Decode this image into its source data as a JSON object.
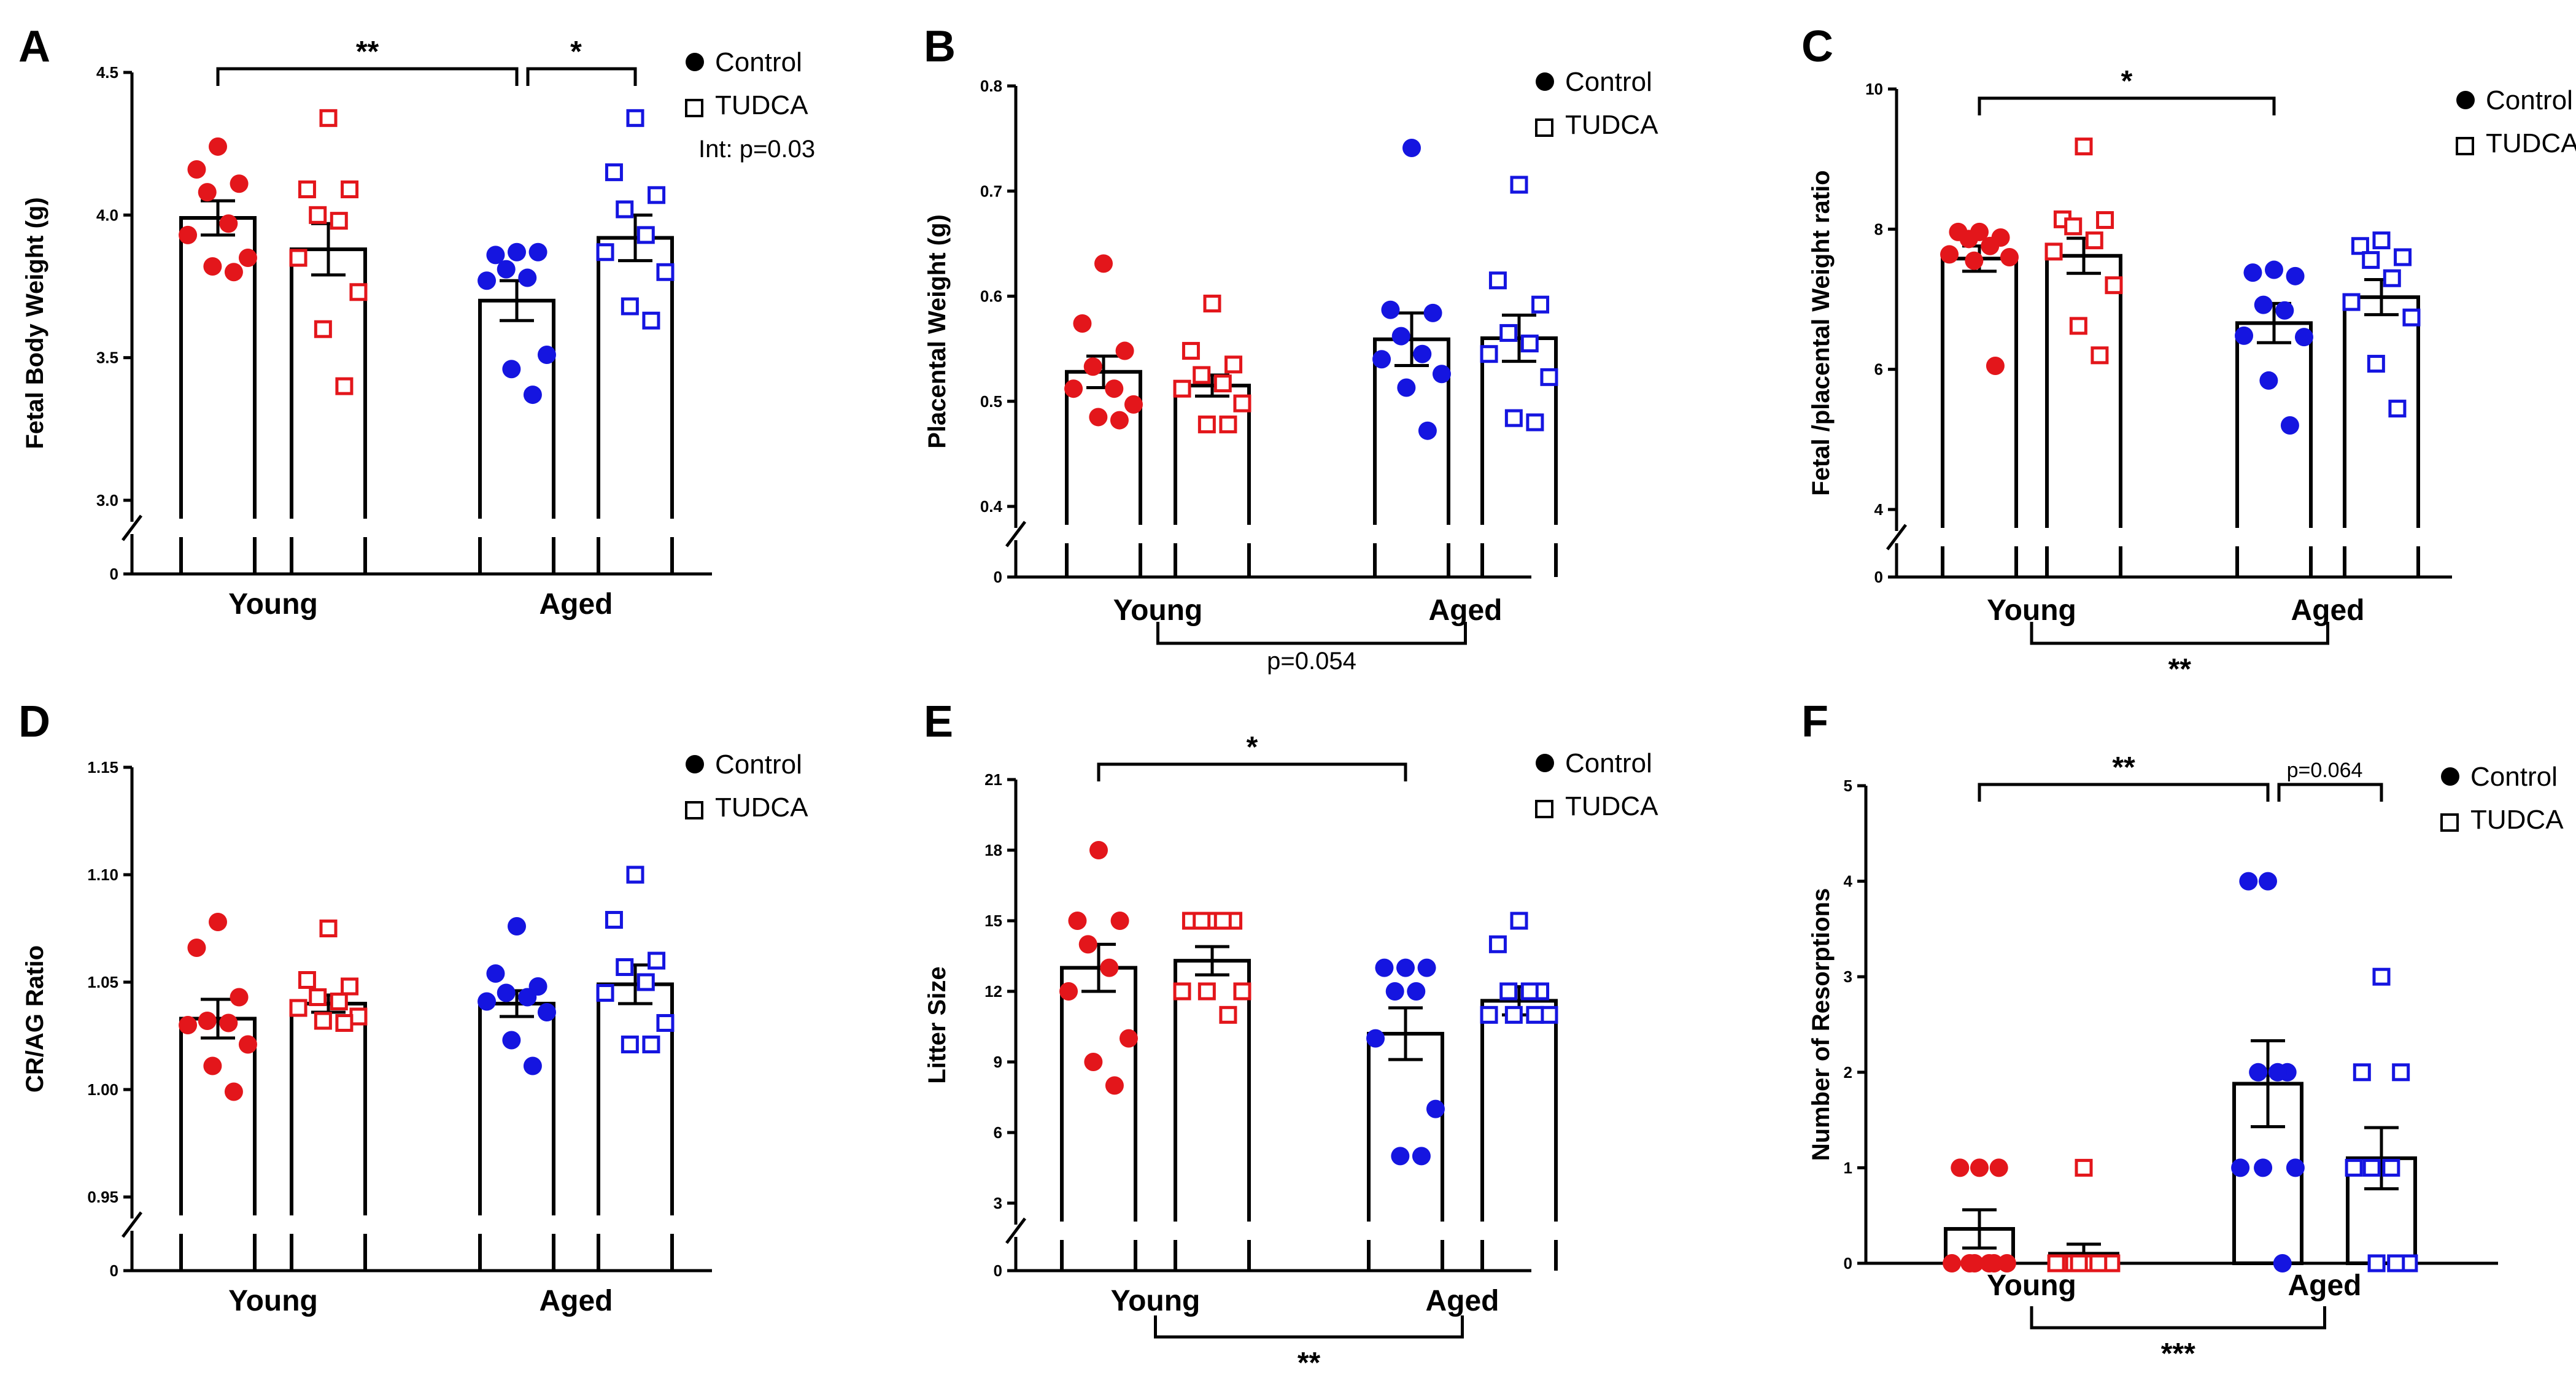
{
  "figure": {
    "legend": {
      "control": "Control",
      "tudca": "TUDCA"
    },
    "colors": {
      "young": "#e3161b",
      "aged": "#1515e0",
      "axis": "#000000"
    }
  },
  "chart_data": [
    {
      "id": "A",
      "type": "bar",
      "title": "A",
      "ylabel": "Fetal Body Weight (g)",
      "ylim": [
        3.0,
        4.5
      ],
      "yticks": [
        "3.0",
        "3.5",
        "4.0",
        "4.5"
      ],
      "ybreak_label": "0",
      "categories": [
        "Young",
        "Aged"
      ],
      "legend_position": "top-right",
      "series": [
        {
          "name": "Control",
          "group": "Young",
          "mean": 3.99,
          "sem": 0.06,
          "points": [
            4.24,
            4.16,
            4.11,
            4.08,
            3.97,
            3.93,
            3.85,
            3.82,
            3.8
          ]
        },
        {
          "name": "TUDCA",
          "group": "Young",
          "mean": 3.88,
          "sem": 0.09,
          "points": [
            4.34,
            4.09,
            4.09,
            4.0,
            3.98,
            3.85,
            3.73,
            3.6,
            3.4
          ]
        },
        {
          "name": "Control",
          "group": "Aged",
          "mean": 3.7,
          "sem": 0.07,
          "points": [
            3.87,
            3.86,
            3.87,
            3.81,
            3.78,
            3.77,
            3.51,
            3.46,
            3.37
          ]
        },
        {
          "name": "TUDCA",
          "group": "Aged",
          "mean": 3.92,
          "sem": 0.08,
          "points": [
            4.34,
            4.15,
            4.07,
            4.02,
            3.93,
            3.87,
            3.8,
            3.68,
            3.63
          ]
        }
      ],
      "brackets": [
        {
          "from": 0,
          "to": 2,
          "label": "**",
          "where": "top",
          "level": 0
        },
        {
          "from": 2,
          "to": 3,
          "label": "*",
          "where": "top",
          "level": 0
        }
      ],
      "extra_label": "Int: p=0.03"
    },
    {
      "id": "B",
      "type": "bar",
      "title": "B",
      "ylabel": "Placental Weight  (g)",
      "ylim": [
        0.4,
        0.8
      ],
      "yticks": [
        "0.4",
        "0.5",
        "0.6",
        "0.7",
        "0.8"
      ],
      "ybreak_label": "0",
      "categories": [
        "Young",
        "Aged"
      ],
      "legend_position": "top-right",
      "series": [
        {
          "name": "Control",
          "group": "Young",
          "mean": 0.528,
          "sem": 0.015,
          "points": [
            0.631,
            0.574,
            0.548,
            0.533,
            0.512,
            0.512,
            0.497,
            0.485,
            0.482
          ]
        },
        {
          "name": "TUDCA",
          "group": "Young",
          "mean": 0.515,
          "sem": 0.01,
          "points": [
            0.593,
            0.548,
            0.535,
            0.525,
            0.517,
            0.512,
            0.498,
            0.478,
            0.478
          ]
        },
        {
          "name": "Control",
          "group": "Aged",
          "mean": 0.559,
          "sem": 0.025,
          "points": [
            0.741,
            0.587,
            0.584,
            0.562,
            0.545,
            0.54,
            0.526,
            0.513,
            0.472
          ]
        },
        {
          "name": "TUDCA",
          "group": "Aged",
          "mean": 0.56,
          "sem": 0.022,
          "points": [
            0.706,
            0.615,
            0.592,
            0.565,
            0.555,
            0.545,
            0.523,
            0.484,
            0.48
          ]
        }
      ],
      "brackets": [
        {
          "from": 0.5,
          "to": 2.5,
          "label": "p=0.054",
          "where": "bottom",
          "level": 0
        }
      ]
    },
    {
      "id": "C",
      "type": "bar",
      "title": "C",
      "ylabel": "Fetal /placental Weight ratio",
      "ylim": [
        4,
        10
      ],
      "yticks": [
        "4",
        "6",
        "8",
        "10"
      ],
      "ybreak_label": "0",
      "categories": [
        "Young",
        "Aged"
      ],
      "legend_position": "top-right",
      "series": [
        {
          "name": "Control",
          "group": "Young",
          "mean": 7.58,
          "sem": 0.18,
          "points": [
            7.96,
            7.96,
            7.88,
            7.86,
            7.76,
            7.64,
            7.6,
            7.55,
            6.05
          ]
        },
        {
          "name": "TUDCA",
          "group": "Young",
          "mean": 7.62,
          "sem": 0.25,
          "points": [
            9.18,
            8.14,
            8.13,
            8.04,
            7.84,
            7.68,
            7.2,
            6.62,
            6.2
          ]
        },
        {
          "name": "Control",
          "group": "Aged",
          "mean": 6.66,
          "sem": 0.28,
          "points": [
            7.42,
            7.38,
            7.33,
            6.92,
            6.84,
            6.48,
            6.46,
            5.84,
            5.2
          ]
        },
        {
          "name": "TUDCA",
          "group": "Aged",
          "mean": 7.03,
          "sem": 0.25,
          "points": [
            7.84,
            7.76,
            7.6,
            7.56,
            7.3,
            6.96,
            6.74,
            6.08,
            5.44
          ]
        }
      ],
      "brackets": [
        {
          "from": 0,
          "to": 2,
          "label": "*",
          "where": "top",
          "level": 0
        },
        {
          "from": 0.5,
          "to": 2.5,
          "label": "**",
          "where": "bottom",
          "level": 0
        }
      ]
    },
    {
      "id": "D",
      "type": "bar",
      "title": "D",
      "ylabel": "CR/AG Ratio",
      "ylim": [
        0.95,
        1.15
      ],
      "yticks": [
        "0.95",
        "1.00",
        "1.05",
        "1.10",
        "1.15"
      ],
      "ybreak_label": "0",
      "categories": [
        "Young",
        "Aged"
      ],
      "legend_position": "top-right",
      "series": [
        {
          "name": "Control",
          "group": "Young",
          "mean": 1.033,
          "sem": 0.009,
          "points": [
            1.078,
            1.066,
            1.043,
            1.032,
            1.031,
            1.03,
            1.021,
            1.011,
            0.999
          ]
        },
        {
          "name": "TUDCA",
          "group": "Young",
          "mean": 1.04,
          "sem": 0.004,
          "points": [
            1.075,
            1.051,
            1.048,
            1.043,
            1.041,
            1.038,
            1.034,
            1.032,
            1.031
          ]
        },
        {
          "name": "Control",
          "group": "Aged",
          "mean": 1.04,
          "sem": 0.006,
          "points": [
            1.076,
            1.054,
            1.048,
            1.045,
            1.043,
            1.041,
            1.036,
            1.023,
            1.011
          ]
        },
        {
          "name": "TUDCA",
          "group": "Aged",
          "mean": 1.049,
          "sem": 0.009,
          "points": [
            1.1,
            1.079,
            1.06,
            1.057,
            1.05,
            1.045,
            1.031,
            1.021,
            1.021
          ]
        }
      ],
      "brackets": []
    },
    {
      "id": "E",
      "type": "bar",
      "title": "E",
      "ylabel": "Litter Size",
      "ylim": [
        3,
        21
      ],
      "yticks": [
        "3",
        "6",
        "9",
        "12",
        "15",
        "18",
        "21"
      ],
      "ybreak_label": "0",
      "categories": [
        "Young",
        "Aged"
      ],
      "legend_position": "top-right",
      "series": [
        {
          "name": "Control",
          "group": "Young",
          "mean": 13.0,
          "sem": 1.0,
          "points": [
            18,
            15,
            15,
            14,
            13,
            12,
            10,
            9,
            8
          ]
        },
        {
          "name": "TUDCA",
          "group": "Young",
          "mean": 13.3,
          "sem": 0.6,
          "points": [
            15,
            15,
            15,
            15,
            15,
            12,
            12,
            12,
            11
          ]
        },
        {
          "name": "Control",
          "group": "Aged",
          "mean": 10.2,
          "sem": 1.1,
          "points": [
            13,
            13,
            13,
            12,
            12,
            10,
            7,
            5,
            5
          ]
        },
        {
          "name": "TUDCA",
          "group": "Aged",
          "mean": 11.6,
          "sem": 0.6,
          "points": [
            15,
            14,
            12,
            12,
            12,
            11,
            11,
            11,
            11
          ]
        }
      ],
      "brackets": [
        {
          "from": 0,
          "to": 2,
          "label": "*",
          "where": "top",
          "level": 0
        },
        {
          "from": 0.5,
          "to": 2.5,
          "label": "**",
          "where": "bottom",
          "level": 0
        }
      ]
    },
    {
      "id": "F",
      "type": "bar",
      "title": "F",
      "ylabel": "Number of Resorptions",
      "ylim": [
        0,
        5
      ],
      "yticks": [
        "0",
        "1",
        "2",
        "3",
        "4",
        "5"
      ],
      "ybreak_label": "",
      "categories": [
        "Young",
        "Aged"
      ],
      "legend_position": "top-right",
      "series": [
        {
          "name": "Control",
          "group": "Young",
          "mean": 0.36,
          "sem": 0.2,
          "points": [
            1,
            1,
            1,
            0,
            0,
            0,
            0,
            0,
            0
          ]
        },
        {
          "name": "TUDCA",
          "group": "Young",
          "mean": 0.1,
          "sem": 0.1,
          "points": [
            1,
            0,
            0,
            0,
            0,
            0,
            0,
            0,
            0
          ]
        },
        {
          "name": "Control",
          "group": "Aged",
          "mean": 1.88,
          "sem": 0.45,
          "points": [
            4,
            4,
            2,
            2,
            2,
            1,
            1,
            1,
            0
          ]
        },
        {
          "name": "TUDCA",
          "group": "Aged",
          "mean": 1.1,
          "sem": 0.32,
          "points": [
            3,
            2,
            2,
            1,
            1,
            1,
            0,
            0,
            0
          ]
        }
      ],
      "brackets": [
        {
          "from": 0,
          "to": 2,
          "label": "**",
          "where": "top",
          "level": 0
        },
        {
          "from": 2,
          "to": 3,
          "label": "p=0.064",
          "where": "top",
          "level": 0,
          "small": true
        },
        {
          "from": 0.5,
          "to": 2.5,
          "label": "***",
          "where": "bottom",
          "level": 0
        }
      ]
    }
  ]
}
